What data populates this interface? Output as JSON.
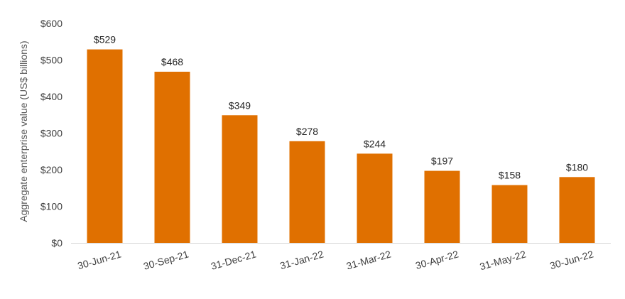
{
  "chart_data": {
    "type": "bar",
    "categories": [
      "30-Jun-21",
      "30-Sep-21",
      "31-Dec-21",
      "31-Jan-22",
      "31-Mar-22",
      "30-Apr-22",
      "31-May-22",
      "30-Jun-22"
    ],
    "values": [
      529,
      468,
      349,
      278,
      244,
      197,
      158,
      180
    ],
    "data_labels": [
      "$529",
      "$468",
      "$349",
      "$278",
      "$244",
      "$197",
      "$158",
      "$180"
    ],
    "ylabel": "Aggregate enterprise value (US$ billions)",
    "xlabel": "",
    "ylim": [
      0,
      600
    ],
    "yticks": [
      0,
      100,
      200,
      300,
      400,
      500,
      600
    ],
    "ytick_labels": [
      "$0",
      "$100",
      "$200",
      "$300",
      "$400",
      "$500",
      "$600"
    ],
    "grid": false,
    "legend": "none",
    "bar_color": "#E07000"
  }
}
